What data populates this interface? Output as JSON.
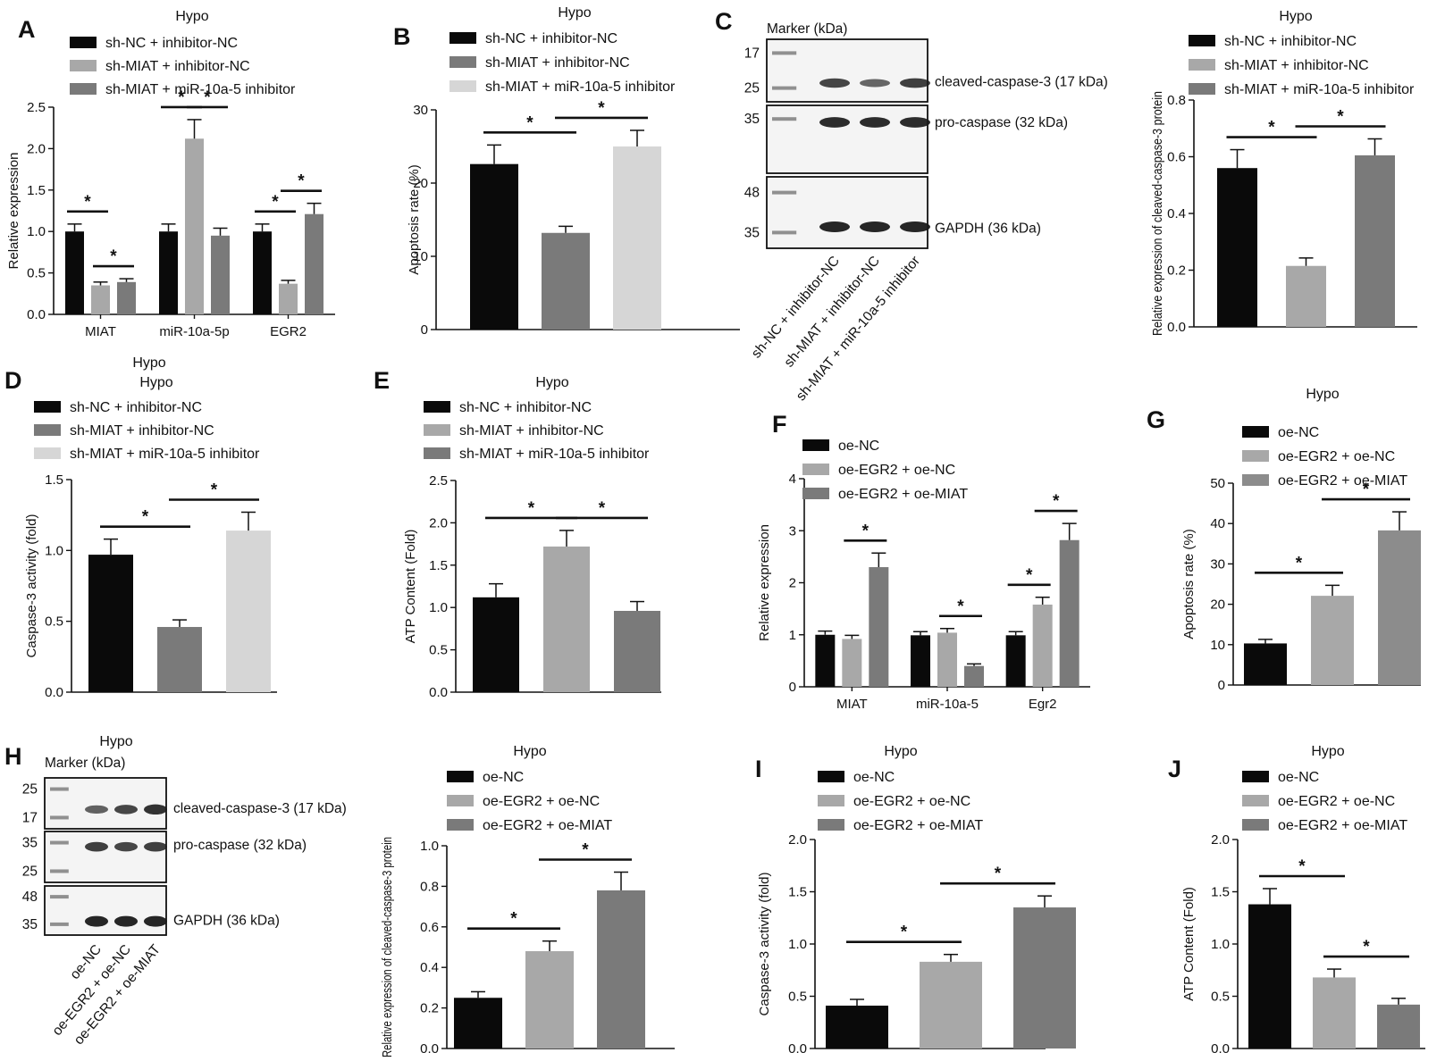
{
  "colors": {
    "black": "#0a0a0a",
    "light_gray": "#a8a8a8",
    "dark_gray": "#7a7a7a",
    "very_light_gray": "#d6d6d6",
    "mid_gray": "#8c8c8c"
  },
  "chart_data": [
    {
      "id": "A",
      "type": "bar",
      "panel_label": "A",
      "title": "Hypo",
      "xlabel": "",
      "ylabel": "Relative expression",
      "ylim": [
        0,
        2.5
      ],
      "yticks": [
        "0.0",
        "0.5",
        "1.0",
        "1.5",
        "2.0",
        "2.5"
      ],
      "ytick_values": [
        0,
        0.5,
        1,
        1.5,
        2,
        2.5
      ],
      "categories": [
        "MIAT",
        "miR-10a-5p",
        "EGR2"
      ],
      "series": [
        {
          "name": "sh-NC + inhibitor-NC",
          "color": "#0a0a0a",
          "values": [
            1.0,
            1.0,
            1.0
          ],
          "errors": [
            0.09,
            0.09,
            0.09
          ]
        },
        {
          "name": "sh-MIAT + inhibitor-NC",
          "color": "#a8a8a8",
          "values": [
            0.35,
            2.12,
            0.37
          ],
          "errors": [
            0.04,
            0.23,
            0.04
          ]
        },
        {
          "name": "sh-MIAT + miR-10a-5 inhibitor",
          "color": "#7a7a7a",
          "values": [
            0.39,
            0.95,
            1.21
          ],
          "errors": [
            0.04,
            0.09,
            0.13
          ]
        }
      ],
      "significance": [
        [
          0,
          0,
          0,
          1
        ],
        [
          0,
          1,
          0,
          2
        ],
        [
          1,
          0,
          1,
          1
        ],
        [
          1,
          1,
          1,
          2
        ],
        [
          2,
          0,
          2,
          1
        ],
        [
          2,
          1,
          2,
          2
        ]
      ],
      "annotations": [
        "*",
        "*",
        "*",
        "*",
        "*",
        "*"
      ]
    },
    {
      "id": "B",
      "type": "bar",
      "panel_label": "B",
      "title": "Hypo",
      "xlabel": "",
      "ylabel": "Apoptosis rate (%)",
      "ylim": [
        0,
        30
      ],
      "yticks": [
        "0",
        "10",
        "20",
        "30"
      ],
      "ytick_values": [
        0,
        10,
        20,
        30
      ],
      "categories": [
        "sh-NC + inhibitor-NC",
        "sh-MIAT + inhibitor-NC",
        "sh-MIAT + miR-10a-5 inhibitor"
      ],
      "values": [
        22.6,
        13.2,
        25.0
      ],
      "errors": [
        2.6,
        0.9,
        2.2
      ],
      "colors": [
        "#0a0a0a",
        "#7a7a7a",
        "#d6d6d6"
      ],
      "significance": [
        [
          0,
          1
        ],
        [
          1,
          2
        ]
      ],
      "annotations": [
        "*",
        "*"
      ]
    },
    {
      "id": "C",
      "type": "bar",
      "panel_label": "",
      "title": "Hypo",
      "xlabel": "",
      "ylabel": "Relative expression of cleaved-caspase-3 protein",
      "ylim": [
        0,
        0.8
      ],
      "yticks": [
        "0.0",
        "0.2",
        "0.4",
        "0.6",
        "0.8"
      ],
      "ytick_values": [
        0,
        0.2,
        0.4,
        0.6,
        0.8
      ],
      "categories": [
        "sh-NC + inhibitor-NC",
        "sh-MIAT + inhibitor-NC",
        "sh-MIAT + miR-10a-5 inhibitor"
      ],
      "values": [
        0.56,
        0.215,
        0.605
      ],
      "errors": [
        0.065,
        0.028,
        0.058
      ],
      "colors": [
        "#0a0a0a",
        "#a8a8a8",
        "#7a7a7a"
      ],
      "significance": [
        [
          0,
          1
        ],
        [
          1,
          2
        ]
      ],
      "annotations": [
        "*",
        "*"
      ]
    },
    {
      "id": "D",
      "type": "bar",
      "panel_label": "D",
      "title": "Hypo",
      "xlabel": "",
      "ylabel": "Caspase-3 activity (fold)",
      "ylim": [
        0,
        1.5
      ],
      "yticks": [
        "0.0",
        "0.5",
        "1.0",
        "1.5"
      ],
      "ytick_values": [
        0,
        0.5,
        1,
        1.5
      ],
      "categories": [
        "sh-NC + inhibitor-NC",
        "sh-MIAT + inhibitor-NC",
        "sh-MIAT + miR-10a-5 inhibitor"
      ],
      "values": [
        0.97,
        0.46,
        1.14
      ],
      "errors": [
        0.11,
        0.05,
        0.13
      ],
      "colors": [
        "#0a0a0a",
        "#7a7a7a",
        "#d6d6d6"
      ],
      "significance": [
        [
          0,
          1
        ],
        [
          1,
          2
        ]
      ],
      "annotations": [
        "*",
        "*"
      ]
    },
    {
      "id": "E",
      "type": "bar",
      "panel_label": "E",
      "title": "Hypo",
      "xlabel": "",
      "ylabel": "ATP Content (Fold)",
      "ylim": [
        0,
        2.5
      ],
      "yticks": [
        "0.0",
        "0.5",
        "1.0",
        "1.5",
        "2.0",
        "2.5"
      ],
      "ytick_values": [
        0,
        0.5,
        1,
        1.5,
        2,
        2.5
      ],
      "categories": [
        "sh-NC + inhibitor-NC",
        "sh-MIAT + inhibitor-NC",
        "sh-MIAT + miR-10a-5 inhibitor"
      ],
      "values": [
        1.12,
        1.72,
        0.96
      ],
      "errors": [
        0.16,
        0.19,
        0.11
      ],
      "colors": [
        "#0a0a0a",
        "#a8a8a8",
        "#7a7a7a"
      ],
      "significance": [
        [
          0,
          1
        ],
        [
          1,
          2
        ]
      ],
      "annotations": [
        "*",
        "*"
      ]
    },
    {
      "id": "F",
      "type": "bar",
      "panel_label": "F",
      "title": "",
      "xlabel": "",
      "ylabel": "Relative expression",
      "ylim": [
        0,
        4
      ],
      "yticks": [
        "0",
        "1",
        "2",
        "3",
        "4"
      ],
      "ytick_values": [
        0,
        1,
        2,
        3,
        4
      ],
      "categories": [
        "MIAT",
        "miR-10a-5",
        "Egr2"
      ],
      "series": [
        {
          "name": "oe-NC",
          "color": "#0a0a0a",
          "values": [
            1.0,
            0.99,
            0.99
          ],
          "errors": [
            0.07,
            0.07,
            0.07
          ]
        },
        {
          "name": "oe-EGR2 + oe-NC",
          "color": "#a8a8a8",
          "values": [
            0.92,
            1.04,
            1.58
          ],
          "errors": [
            0.07,
            0.08,
            0.14
          ]
        },
        {
          "name": "oe-EGR2 + oe-MIAT",
          "color": "#7a7a7a",
          "values": [
            2.3,
            0.4,
            2.82
          ],
          "errors": [
            0.27,
            0.04,
            0.32
          ]
        }
      ],
      "significance": [
        [
          0,
          1,
          0,
          2
        ],
        [
          1,
          1,
          1,
          2
        ],
        [
          2,
          0,
          2,
          1
        ],
        [
          2,
          1,
          2,
          2
        ]
      ],
      "annotations": [
        "*",
        "*",
        "*",
        "*"
      ]
    },
    {
      "id": "G",
      "type": "bar",
      "panel_label": "G",
      "title": "Hypo",
      "xlabel": "",
      "ylabel": "Apoptosis rate (%)",
      "ylim": [
        0,
        50
      ],
      "yticks": [
        "0",
        "10",
        "20",
        "30",
        "40",
        "50"
      ],
      "ytick_values": [
        0,
        10,
        20,
        30,
        40,
        50
      ],
      "categories": [
        "oe-NC",
        "oe-EGR2 + oe-NC",
        "oe-EGR2 + oe-MIAT"
      ],
      "values": [
        10.3,
        22.1,
        38.3
      ],
      "errors": [
        1.0,
        2.6,
        4.6
      ],
      "colors": [
        "#0a0a0a",
        "#a8a8a8",
        "#8c8c8c"
      ],
      "significance": [
        [
          0,
          1
        ],
        [
          1,
          2
        ]
      ],
      "annotations": [
        "*",
        "*"
      ]
    },
    {
      "id": "H",
      "type": "bar",
      "panel_label": "",
      "title": "Hypo",
      "xlabel": "",
      "ylabel": "Relative expression of cleaved-caspase-3 protein",
      "ylim": [
        0,
        1.0
      ],
      "yticks": [
        "0.0",
        "0.2",
        "0.4",
        "0.6",
        "0.8",
        "1.0"
      ],
      "ytick_values": [
        0,
        0.2,
        0.4,
        0.6,
        0.8,
        1.0
      ],
      "categories": [
        "oe-NC",
        "oe-EGR2 + oe-NC",
        "oe-EGR2 + oe-MIAT"
      ],
      "values": [
        0.25,
        0.48,
        0.78
      ],
      "errors": [
        0.03,
        0.05,
        0.09
      ],
      "colors": [
        "#0a0a0a",
        "#a8a8a8",
        "#7a7a7a"
      ],
      "significance": [
        [
          0,
          1
        ],
        [
          1,
          2
        ]
      ],
      "annotations": [
        "*",
        "*"
      ]
    },
    {
      "id": "I",
      "type": "bar",
      "panel_label": "I",
      "title": "Hypo",
      "xlabel": "",
      "ylabel": "Caspase-3 activity (fold)",
      "ylim": [
        0,
        2.0
      ],
      "yticks": [
        "0.0",
        "0.5",
        "1.0",
        "1.5",
        "2.0"
      ],
      "ytick_values": [
        0,
        0.5,
        1,
        1.5,
        2
      ],
      "categories": [
        "oe-NC",
        "oe-EGR2 + oe-NC",
        "oe-EGR2 + oe-MIAT"
      ],
      "values": [
        0.41,
        0.83,
        1.35
      ],
      "errors": [
        0.06,
        0.07,
        0.11
      ],
      "colors": [
        "#0a0a0a",
        "#a8a8a8",
        "#7a7a7a"
      ],
      "significance": [
        [
          0,
          1
        ],
        [
          1,
          2
        ]
      ],
      "annotations": [
        "*",
        "*"
      ]
    },
    {
      "id": "J",
      "type": "bar",
      "panel_label": "J",
      "title": "Hypo",
      "xlabel": "",
      "ylabel": "ATP Content (Fold)",
      "ylim": [
        0,
        2.0
      ],
      "yticks": [
        "0.0",
        "0.5",
        "1.0",
        "1.5",
        "2.0"
      ],
      "ytick_values": [
        0,
        0.5,
        1,
        1.5,
        2
      ],
      "categories": [
        "oe-NC",
        "oe-EGR2 + oe-NC",
        "oe-EGR2 + oe-MIAT"
      ],
      "values": [
        1.38,
        0.68,
        0.42
      ],
      "errors": [
        0.15,
        0.08,
        0.06
      ],
      "colors": [
        "#0a0a0a",
        "#a8a8a8",
        "#7a7a7a"
      ],
      "significance": [
        [
          0,
          1
        ],
        [
          1,
          2
        ]
      ],
      "annotations": [
        "*",
        "*"
      ]
    }
  ],
  "western_C": {
    "panel_label": "C",
    "marker_title": "Marker (kDa)",
    "blots": [
      {
        "marker_labels": [
          "17",
          "25"
        ],
        "band_label": "cleaved-caspase-3 (17 kDa)",
        "band_strength": [
          0.75,
          0.5,
          0.8
        ]
      },
      {
        "marker_labels": [
          "35"
        ],
        "band_label": "pro-caspase (32 kDa)",
        "band_strength": [
          0.95,
          0.95,
          0.95
        ]
      },
      {
        "marker_labels": [
          "48",
          "35"
        ],
        "band_label": "GAPDH (36 kDa)",
        "band_strength": [
          1.0,
          1.0,
          1.0
        ]
      }
    ],
    "lane_labels": [
      "sh-NC + inhibitor-NC",
      "sh-MIAT + inhibitor-NC",
      "sh-MIAT + miR-10a-5 inhibitor"
    ],
    "extra_text": "Hypo"
  },
  "western_H": {
    "panel_label": "H",
    "title": "Hypo",
    "marker_title": "Marker (kDa)",
    "blots": [
      {
        "marker_labels": [
          "25",
          "17"
        ],
        "band_label": "cleaved-caspase-3 (17 kDa)",
        "band_strength": [
          0.55,
          0.75,
          0.9
        ]
      },
      {
        "marker_labels": [
          "35",
          "25"
        ],
        "band_label": "pro-caspase (32 kDa)",
        "band_strength": [
          0.8,
          0.75,
          0.8
        ]
      },
      {
        "marker_labels": [
          "48",
          "35"
        ],
        "band_label": "GAPDH (36 kDa)",
        "band_strength": [
          1.0,
          1.0,
          1.0
        ]
      }
    ],
    "lane_labels": [
      "oe-NC",
      "oe-EGR2 + oe-NC",
      "oe-EGR2 + oe-MIAT"
    ]
  }
}
